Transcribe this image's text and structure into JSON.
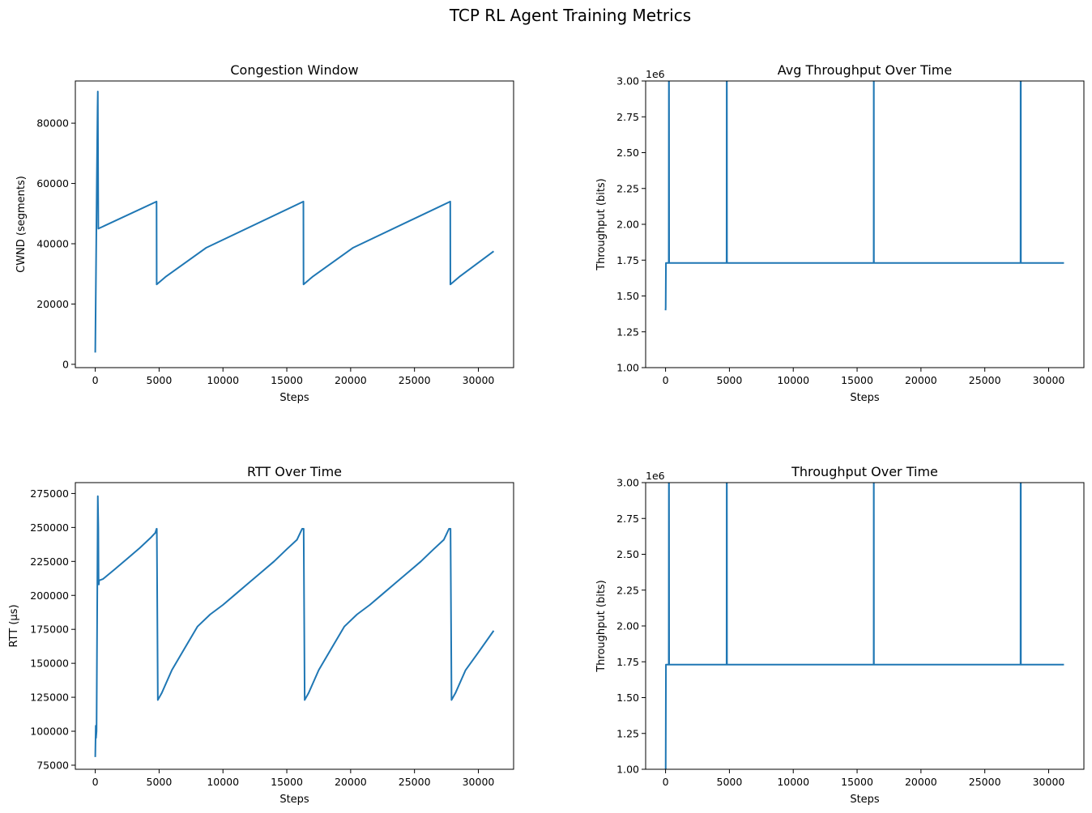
{
  "figure": {
    "title": "TCP RL Agent Training Metrics",
    "line_color": "#1f77b4"
  },
  "chart_data": [
    {
      "type": "line",
      "title": "Congestion Window",
      "xlabel": "Steps",
      "ylabel": "CWND (segments)",
      "xlim": [
        -1560,
        32760
      ],
      "ylim": [
        -1100,
        94000
      ],
      "xticks": [
        0,
        5000,
        10000,
        15000,
        20000,
        25000,
        30000
      ],
      "yticks": [
        0,
        20000,
        40000,
        60000,
        80000
      ],
      "y_offset_text": "",
      "series": [
        {
          "x": [
            0,
            120,
            180,
            200,
            240,
            4800,
            4810,
            5500,
            8700,
            16300,
            16310,
            17000,
            20200,
            27800,
            27810,
            28500,
            31200
          ],
          "y": [
            3900,
            60000,
            85000,
            90500,
            45000,
            54000,
            26500,
            29000,
            38700,
            54000,
            26500,
            29000,
            38700,
            54000,
            26500,
            29000,
            37500
          ]
        }
      ]
    },
    {
      "type": "line",
      "title": "Avg Throughput Over Time",
      "xlabel": "Steps",
      "ylabel": "Throughput (bits)",
      "xlim": [
        -1560,
        32760
      ],
      "ylim": [
        1.0,
        3.0
      ],
      "xticks": [
        0,
        5000,
        10000,
        15000,
        20000,
        25000,
        30000
      ],
      "yticks": [
        1.0,
        1.25,
        1.5,
        1.75,
        2.0,
        2.25,
        2.5,
        2.75,
        3.0
      ],
      "y_offset_text": "1e6",
      "series": [
        {
          "x": [
            0,
            10,
            30,
            40,
            250,
            260,
            270,
            280,
            4780,
            4790,
            4800,
            4810,
            16300,
            16305,
            16310,
            16315,
            27800,
            27805,
            27820,
            27825,
            31200
          ],
          "y": [
            1.4,
            1.42,
            1.73,
            1.73,
            1.73,
            3.1,
            3.1,
            1.73,
            1.73,
            3.1,
            3.1,
            1.73,
            1.73,
            3.1,
            3.1,
            1.73,
            1.73,
            3.1,
            3.1,
            1.73,
            1.73
          ]
        }
      ]
    },
    {
      "type": "line",
      "title": "RTT Over Time",
      "xlabel": "Steps",
      "ylabel": "RTT (µs)",
      "xlim": [
        -1560,
        32760
      ],
      "ylim": [
        72000,
        283000
      ],
      "xticks": [
        0,
        5000,
        10000,
        15000,
        20000,
        25000,
        30000
      ],
      "yticks": [
        75000,
        100000,
        125000,
        150000,
        175000,
        200000,
        225000,
        250000,
        275000
      ],
      "y_offset_text": "",
      "series": [
        {
          "x": [
            0,
            40,
            60,
            100,
            200,
            240,
            260,
            280,
            300,
            600,
            1500,
            2500,
            3500,
            4400,
            4700,
            4800,
            4820,
            4900,
            5200,
            6000,
            7000,
            8000,
            9000,
            10000,
            11000,
            12000,
            13000,
            14000,
            15000,
            15800,
            16200,
            16300,
            16320,
            16400,
            16700,
            17500,
            18500,
            19500,
            20500,
            21500,
            22500,
            23500,
            24500,
            25500,
            26500,
            27300,
            27700,
            27800,
            27820,
            27900,
            28200,
            29000,
            30000,
            31200
          ],
          "y": [
            81000,
            104000,
            95000,
            100000,
            273000,
            250000,
            210000,
            208000,
            211000,
            212000,
            219000,
            227000,
            235000,
            243000,
            246000,
            249000,
            249000,
            123000,
            128000,
            145000,
            161000,
            177000,
            186000,
            193000,
            201000,
            209000,
            217000,
            225000,
            234000,
            241000,
            249000,
            249000,
            249000,
            123000,
            128000,
            145000,
            161000,
            177000,
            186000,
            193000,
            201000,
            209000,
            217000,
            225000,
            234000,
            241000,
            249000,
            249000,
            249000,
            123000,
            128000,
            145000,
            158000,
            174000
          ]
        }
      ]
    },
    {
      "type": "line",
      "title": "Throughput Over Time",
      "xlabel": "Steps",
      "ylabel": "Throughput (bits)",
      "xlim": [
        -1560,
        32760
      ],
      "ylim": [
        1.0,
        3.0
      ],
      "xticks": [
        0,
        5000,
        10000,
        15000,
        20000,
        25000,
        30000
      ],
      "yticks": [
        1.0,
        1.25,
        1.5,
        1.75,
        2.0,
        2.25,
        2.5,
        2.75,
        3.0
      ],
      "y_offset_text": "1e6",
      "series": [
        {
          "x": [
            0,
            10,
            30,
            40,
            250,
            260,
            270,
            280,
            4780,
            4790,
            4800,
            4810,
            16300,
            16305,
            16310,
            16315,
            27800,
            27805,
            27820,
            27825,
            31200
          ],
          "y": [
            1.0,
            1.0,
            1.73,
            1.73,
            1.73,
            3.1,
            3.1,
            1.73,
            1.73,
            3.1,
            3.1,
            1.73,
            1.73,
            3.1,
            3.1,
            1.73,
            1.73,
            3.1,
            3.1,
            1.73,
            1.73
          ]
        }
      ]
    }
  ]
}
